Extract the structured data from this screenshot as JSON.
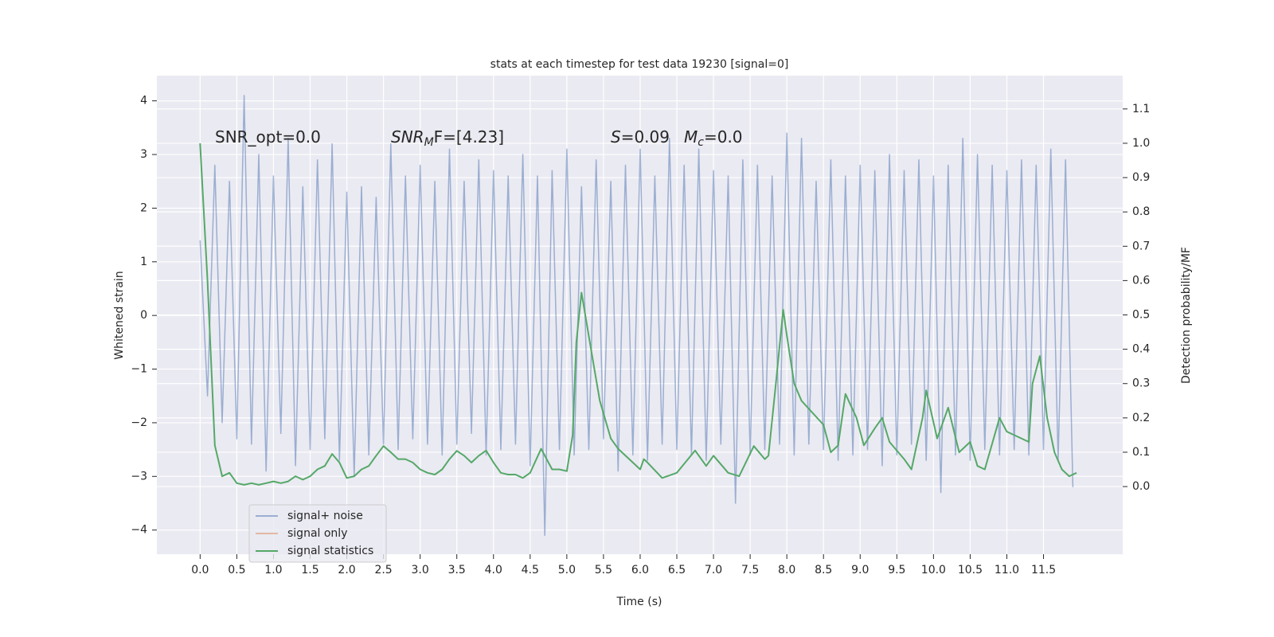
{
  "chart_data": {
    "type": "line",
    "title": "stats at each timestep for test data 19230 [signal=0]",
    "xlabel": "Time (s)",
    "ylabel": "Whitened strain",
    "y2label": "Detection probability/MF",
    "annotations": [
      {
        "main": "SNR_opt=0.0"
      },
      {
        "main": "SNR",
        "sub": "M",
        "rest": "F=[4.23]"
      },
      {
        "main": "S",
        "rest": "=0.09"
      },
      {
        "main": "M",
        "sub": "c",
        "rest": "=0.0"
      }
    ],
    "xlim": [
      -0.59,
      12.58
    ],
    "ylim": [
      -4.45,
      4.47
    ],
    "y2lim": [
      -0.197,
      1.197
    ],
    "xticks": [
      {
        "value": 0,
        "label": "0.0"
      },
      0.5,
      {
        "value": 1,
        "label": "1.0"
      },
      1.5,
      {
        "value": 2,
        "label": "2.0"
      },
      2.5,
      {
        "value": 3,
        "label": "3.0"
      },
      3.5,
      {
        "value": 4,
        "label": "4.0"
      },
      4.5,
      {
        "value": 5,
        "label": "5.0"
      },
      5.5,
      {
        "value": 6,
        "label": "6.0"
      },
      6.5,
      {
        "value": 7,
        "label": "7.0"
      },
      7.5,
      {
        "value": 8,
        "label": "8.0"
      },
      8.5,
      {
        "value": 9,
        "label": "9.0"
      },
      9.5,
      {
        "value": 10,
        "label": "10.0"
      },
      10.5,
      {
        "value": 11,
        "label": "11.0"
      },
      11.5
    ],
    "yticks": [
      {
        "value": -4,
        "label": "−4"
      },
      {
        "value": -3,
        "label": "−3"
      },
      {
        "value": -2,
        "label": "−2"
      },
      {
        "value": -1,
        "label": "−1"
      },
      0,
      1,
      2,
      3,
      4
    ],
    "y2ticks": [
      {
        "value": 0,
        "label": "0.0"
      },
      0.1,
      0.2,
      0.3,
      0.4,
      0.5,
      0.6,
      0.7,
      0.8,
      0.9,
      {
        "value": 1,
        "label": "1.0"
      },
      1.1
    ],
    "grid": true,
    "legend": "lower left",
    "series": [
      {
        "name": "signal+ noise",
        "color": "#4c72b0",
        "alpha": 0.5,
        "x": [
          0,
          0.1,
          0.2,
          0.3,
          0.4,
          0.5,
          0.6,
          0.7,
          0.8,
          0.9,
          1,
          1.1,
          1.2,
          1.3,
          1.4,
          1.5,
          1.6,
          1.7,
          1.8,
          1.9,
          2,
          2.1,
          2.2,
          2.3,
          2.4,
          2.5,
          2.6,
          2.7,
          2.8,
          2.9,
          3,
          3.1,
          3.2,
          3.3,
          3.4,
          3.5,
          3.6,
          3.7,
          3.8,
          3.9,
          4,
          4.1,
          4.2,
          4.3,
          4.4,
          4.5,
          4.6,
          4.7,
          4.8,
          4.9,
          5,
          5.1,
          5.2,
          5.3,
          5.4,
          5.5,
          5.6,
          5.7,
          5.8,
          5.9,
          6,
          6.1,
          6.2,
          6.3,
          6.4,
          6.5,
          6.6,
          6.7,
          6.8,
          6.9,
          7,
          7.1,
          7.2,
          7.3,
          7.4,
          7.5,
          7.6,
          7.7,
          7.8,
          7.9,
          8,
          8.1,
          8.2,
          8.3,
          8.4,
          8.5,
          8.6,
          8.7,
          8.8,
          8.9,
          9,
          9.1,
          9.2,
          9.3,
          9.4,
          9.5,
          9.6,
          9.7,
          9.8,
          9.9,
          10,
          10.1,
          10.2,
          10.3,
          10.4,
          10.5,
          10.6,
          10.7,
          10.8,
          10.9,
          11,
          11.1,
          11.2,
          11.3,
          11.4,
          11.5,
          11.6,
          11.7,
          11.8,
          11.9
        ],
        "values": [
          1.4,
          -1.5,
          2.8,
          -2.0,
          2.5,
          -2.3,
          4.1,
          -2.4,
          3.0,
          -2.9,
          2.6,
          -2.2,
          3.3,
          -2.8,
          2.4,
          -2.5,
          2.9,
          -2.3,
          3.2,
          -2.7,
          2.3,
          -3.0,
          2.4,
          -2.6,
          2.2,
          -2.4,
          3.2,
          -2.5,
          2.6,
          -2.3,
          2.8,
          -2.4,
          2.5,
          -2.6,
          3.1,
          -2.4,
          2.5,
          -2.2,
          2.9,
          -2.6,
          2.7,
          -2.5,
          2.6,
          -2.4,
          3.0,
          -2.8,
          2.6,
          -4.1,
          2.7,
          -2.5,
          3.1,
          -2.6,
          2.4,
          -2.5,
          2.9,
          -2.3,
          2.5,
          -2.9,
          2.8,
          -2.6,
          3.1,
          -2.7,
          2.6,
          -2.4,
          3.3,
          -2.5,
          2.8,
          -2.6,
          3.1,
          -2.7,
          2.7,
          -2.4,
          2.6,
          -3.5,
          2.9,
          -2.6,
          2.8,
          -2.5,
          2.6,
          -2.4,
          3.4,
          -2.6,
          3.3,
          -2.4,
          2.5,
          -2.5,
          2.9,
          -2.7,
          2.6,
          -2.6,
          2.8,
          -2.5,
          2.7,
          -2.8,
          3.0,
          -2.6,
          2.7,
          -2.4,
          2.9,
          -2.7,
          2.6,
          -3.3,
          2.8,
          -2.6,
          3.3,
          -2.7,
          3.0,
          -2.5,
          2.8,
          -2.6,
          2.7,
          -2.5,
          2.9,
          -2.6,
          2.8,
          -2.5,
          3.1,
          -2.7,
          2.9,
          -3.2
        ]
      },
      {
        "name": "signal only",
        "color": "#dd8452",
        "alpha": 0.5
      },
      {
        "name": "signal statistics",
        "color": "#55a868",
        "axis": "y2",
        "x": [
          0,
          0.1,
          0.2,
          0.3,
          0.4,
          0.5,
          0.6,
          0.7,
          0.8,
          0.9,
          1,
          1.1,
          1.2,
          1.3,
          1.4,
          1.5,
          1.6,
          1.7,
          1.8,
          1.9,
          2,
          2.1,
          2.2,
          2.3,
          2.4,
          2.5,
          2.6,
          2.7,
          2.8,
          2.9,
          3,
          3.1,
          3.2,
          3.3,
          3.4,
          3.5,
          3.6,
          3.7,
          3.8,
          3.9,
          4,
          4.1,
          4.2,
          4.3,
          4.4,
          4.5,
          4.65,
          4.8,
          4.9,
          5,
          5.08,
          5.13,
          5.2,
          5.37,
          5.45,
          5.6,
          5.7,
          5.9,
          6,
          6.05,
          6.1,
          6.3,
          6.5,
          6.75,
          6.9,
          7,
          7.2,
          7.35,
          7.55,
          7.7,
          7.75,
          7.85,
          7.95,
          8,
          8.1,
          8.2,
          8.5,
          8.6,
          8.7,
          8.8,
          8.95,
          9.05,
          9.2,
          9.3,
          9.4,
          9.6,
          9.7,
          9.85,
          9.9,
          10.05,
          10.2,
          10.35,
          10.5,
          10.6,
          10.7,
          10.9,
          11,
          11.1,
          11.3,
          11.35,
          11.45,
          11.55,
          11.65,
          11.75,
          11.85,
          11.95
        ],
        "values": [
          1.0,
          0.6,
          0.12,
          0.03,
          0.04,
          0.01,
          0.005,
          0.01,
          0.005,
          0.01,
          0.015,
          0.01,
          0.015,
          0.03,
          0.02,
          0.03,
          0.05,
          0.06,
          0.095,
          0.07,
          0.025,
          0.03,
          0.05,
          0.06,
          0.09,
          0.118,
          0.1,
          0.08,
          0.08,
          0.07,
          0.05,
          0.04,
          0.035,
          0.05,
          0.08,
          0.104,
          0.09,
          0.07,
          0.09,
          0.105,
          0.07,
          0.04,
          0.035,
          0.035,
          0.025,
          0.04,
          0.11,
          0.05,
          0.05,
          0.045,
          0.15,
          0.42,
          0.565,
          0.35,
          0.25,
          0.14,
          0.11,
          0.07,
          0.05,
          0.08,
          0.07,
          0.025,
          0.04,
          0.105,
          0.06,
          0.09,
          0.04,
          0.03,
          0.118,
          0.08,
          0.09,
          0.3,
          0.515,
          0.44,
          0.3,
          0.25,
          0.18,
          0.1,
          0.12,
          0.27,
          0.2,
          0.12,
          0.17,
          0.2,
          0.13,
          0.08,
          0.05,
          0.2,
          0.28,
          0.14,
          0.23,
          0.1,
          0.13,
          0.06,
          0.05,
          0.2,
          0.16,
          0.15,
          0.13,
          0.3,
          0.38,
          0.2,
          0.1,
          0.05,
          0.03,
          0.04
        ]
      }
    ]
  }
}
